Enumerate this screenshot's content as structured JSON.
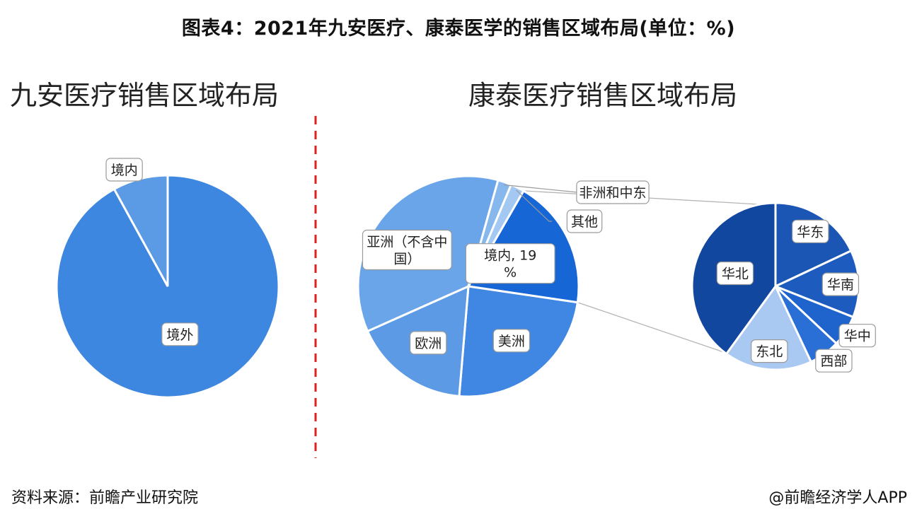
{
  "title": "图表4：2021年九安医疗、康泰医学的销售区域布局(单位：%)",
  "footer": {
    "source": "资料来源：前瞻产业研究院",
    "credit": "@前瞻经济学人APP"
  },
  "chart_data": [
    {
      "type": "pie",
      "title": "九安医疗销售区域布局",
      "slices": [
        {
          "label": "境外",
          "value": 92,
          "color": "#3d87e0"
        },
        {
          "label": "境内",
          "value": 8,
          "color": "#5b9be6"
        }
      ]
    },
    {
      "type": "pie",
      "title": "康泰医疗销售区域布局",
      "slices": [
        {
          "label": "境内, 19%",
          "value": 19,
          "color": "#1766d6"
        },
        {
          "label": "美洲",
          "value": 24,
          "color": "#3f87e2"
        },
        {
          "label": "欧洲",
          "value": 17,
          "color": "#5c9ae6"
        },
        {
          "label": "亚洲（不含中国）",
          "value": 36,
          "color": "#6aa5ea"
        },
        {
          "label": "非洲和中东",
          "value": 2,
          "color": "#86b8ee"
        },
        {
          "label": "其他",
          "value": 2,
          "color": "#a3c9f3"
        }
      ]
    },
    {
      "type": "pie",
      "title": "",
      "slices": [
        {
          "label": "华东",
          "value": 18,
          "color": "#1c56b4"
        },
        {
          "label": "华南",
          "value": 13,
          "color": "#1e5bbf"
        },
        {
          "label": "华中",
          "value": 6,
          "color": "#1f63cc"
        },
        {
          "label": "西部",
          "value": 6,
          "color": "#2a6fd6"
        },
        {
          "label": "东北",
          "value": 17,
          "color": "#a9c8f2"
        },
        {
          "label": "华北",
          "value": 40,
          "color": "#11479f"
        }
      ]
    }
  ]
}
